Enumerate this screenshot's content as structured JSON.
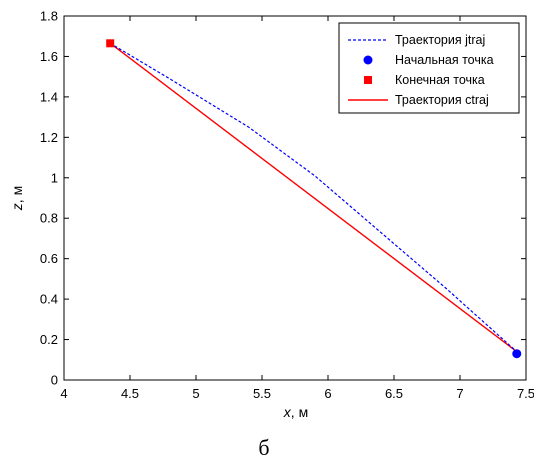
{
  "chart_data": {
    "type": "line",
    "xlim": [
      4,
      7.5
    ],
    "ylim": [
      0,
      1.8
    ],
    "xticks": [
      "4",
      "4.5",
      "5",
      "5.5",
      "6",
      "6.5",
      "7",
      "7.5"
    ],
    "yticks": [
      "0",
      "0.2",
      "0.4",
      "0.6",
      "0.8",
      "1",
      "1.2",
      "1.4",
      "1.6",
      "1.8"
    ],
    "xlabel": {
      "var": "x",
      "unit": ", м"
    },
    "ylabel": {
      "var": "z",
      "unit": ", м"
    },
    "grid": false,
    "legend_position": "top-right",
    "series": [
      {
        "name": "Траектория jtraj",
        "style": "dashed",
        "color": "#0000ff",
        "x": [
          4.35,
          4.8,
          5.4,
          5.9,
          6.4,
          6.9,
          7.43
        ],
        "y": [
          1.665,
          1.49,
          1.25,
          1.01,
          0.73,
          0.45,
          0.14
        ]
      },
      {
        "name": "Начальная точка",
        "style": "marker-circle",
        "color": "#0000ff",
        "x": [
          7.43
        ],
        "y": [
          0.13
        ]
      },
      {
        "name": "Конечная точка",
        "style": "marker-square",
        "color": "#ff0000",
        "x": [
          4.35
        ],
        "y": [
          1.665
        ]
      },
      {
        "name": "Траектория ctraj",
        "style": "solid",
        "color": "#ff0000",
        "x": [
          4.35,
          7.43
        ],
        "y": [
          1.665,
          0.14
        ]
      }
    ]
  },
  "caption": "б"
}
